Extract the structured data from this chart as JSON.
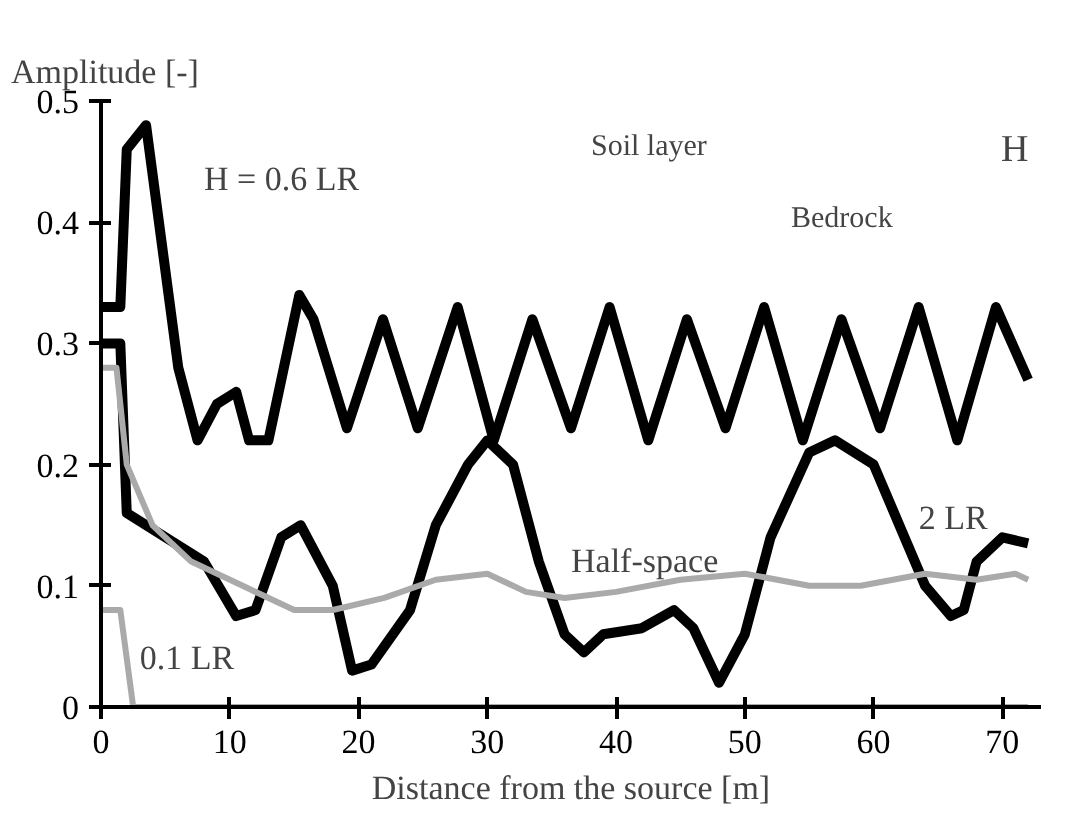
{
  "chart_data": {
    "type": "line",
    "xlabel": "Distance from the source [m]",
    "ylabel": "Amplitude [-]",
    "xlim": [
      0,
      73
    ],
    "ylim": [
      0,
      0.5
    ],
    "xticks": [
      0,
      10,
      20,
      30,
      40,
      50,
      60,
      70
    ],
    "yticks": [
      0,
      0.1,
      0.2,
      0.3,
      0.4,
      0.5
    ],
    "grid": false,
    "legend": false,
    "marker": "none",
    "line_style": "solid",
    "series": [
      {
        "name": "H = 0.6 LR",
        "color": "#000000",
        "x": [
          0,
          1.5,
          2,
          3.5,
          6,
          7.5,
          9,
          10.5,
          11.5,
          13,
          15.4,
          16.5,
          19.1,
          21.9,
          24.6,
          27.7,
          30.5,
          33.5,
          36.5,
          39.5,
          42.5,
          45.5,
          48.5,
          51.5,
          54.5,
          57.5,
          60.5,
          63.5,
          66.5,
          69.5,
          72
        ],
        "values": [
          0.33,
          0.33,
          0.46,
          0.48,
          0.28,
          0.22,
          0.25,
          0.26,
          0.22,
          0.22,
          0.34,
          0.32,
          0.23,
          0.32,
          0.23,
          0.33,
          0.22,
          0.32,
          0.23,
          0.33,
          0.22,
          0.32,
          0.23,
          0.33,
          0.22,
          0.32,
          0.23,
          0.33,
          0.22,
          0.33,
          0.27
        ]
      },
      {
        "name": "2 LR",
        "color": "#000000",
        "x": [
          0,
          1.5,
          2,
          5,
          8,
          10.5,
          12,
          14,
          15.5,
          18,
          19.5,
          21,
          24,
          26,
          28.5,
          30,
          32,
          34,
          36,
          37.5,
          39,
          42,
          44.5,
          46,
          48,
          50,
          52,
          55,
          57,
          60,
          62,
          64,
          66,
          67,
          68,
          70,
          72
        ],
        "values": [
          0.3,
          0.3,
          0.16,
          0.14,
          0.12,
          0.075,
          0.08,
          0.14,
          0.15,
          0.1,
          0.03,
          0.035,
          0.08,
          0.15,
          0.2,
          0.22,
          0.2,
          0.12,
          0.06,
          0.045,
          0.06,
          0.065,
          0.08,
          0.065,
          0.02,
          0.06,
          0.14,
          0.21,
          0.22,
          0.2,
          0.15,
          0.1,
          0.075,
          0.08,
          0.12,
          0.14,
          0.135
        ]
      },
      {
        "name": "Half-space",
        "color": "#aaaaaa",
        "x": [
          0,
          1.2,
          2,
          4,
          7,
          11,
          15,
          18,
          22,
          26,
          30,
          33,
          36,
          40,
          45,
          50,
          55,
          59,
          64,
          68,
          71,
          72
        ],
        "values": [
          0.28,
          0.28,
          0.2,
          0.15,
          0.12,
          0.1,
          0.08,
          0.08,
          0.09,
          0.105,
          0.11,
          0.095,
          0.09,
          0.095,
          0.105,
          0.11,
          0.1,
          0.1,
          0.11,
          0.105,
          0.11,
          0.105
        ]
      },
      {
        "name": "0.1 LR",
        "color": "#aaaaaa",
        "x": [
          0,
          1.5,
          2.5,
          72
        ],
        "values": [
          0.08,
          0.08,
          0,
          0
        ]
      }
    ],
    "annotations": [
      "Soil layer",
      "Bedrock",
      "H"
    ]
  }
}
